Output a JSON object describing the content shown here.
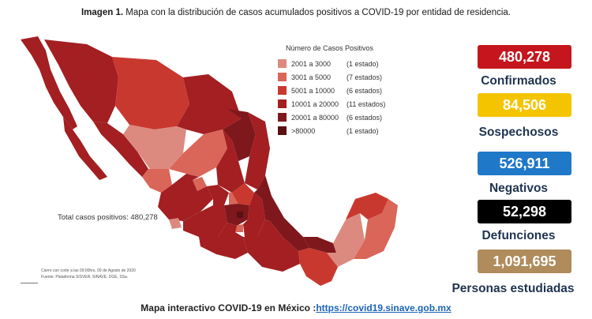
{
  "header": {
    "prefix": "Imagen 1.",
    "title": "Mapa con la distribución de casos acumulados positivos a COVID-19 por entidad de residencia."
  },
  "legend": {
    "title": "Número de Casos Positivos",
    "items": [
      {
        "range": "2001 a  3000",
        "note": "(1 estado)",
        "color": "#dc8a80"
      },
      {
        "range": "3001 a  5000",
        "note": "(7 estados)",
        "color": "#d96658"
      },
      {
        "range": "5001 a 10000",
        "note": "(6 estados)",
        "color": "#c9382f"
      },
      {
        "range": "10001 a 20000",
        "note": "(11 estados)",
        "color": "#a31f22"
      },
      {
        "range": "20001 a 80000",
        "note": "(6 estados)",
        "color": "#7e181c"
      },
      {
        "range": ">80000",
        "note": "(1 estado)",
        "color": "#5a1014"
      }
    ]
  },
  "map": {
    "total_label": "Total casos positivos: 480,278"
  },
  "footnote": {
    "line1": "Cierre con corte a las 09:00hrs, 09 de Agosto de 2020",
    "line2": "Fuente: Plataforma SISVER, SINAVE, DGE, SSa."
  },
  "stats": [
    {
      "value": "480,278",
      "label": "Confirmados",
      "bg": "#c4161c",
      "fg": "#ffffff"
    },
    {
      "value": "84,506",
      "label": "Sospechosos",
      "bg": "#f5c400",
      "fg": "#ffffff"
    },
    {
      "value": "526,911",
      "label": "Negativos",
      "bg": "#1f78c8",
      "fg": "#ffffff"
    },
    {
      "value": "52,298",
      "label": "Defunciones",
      "bg": "#000000",
      "fg": "#ffffff"
    },
    {
      "value": "1,091,695",
      "label": "Personas estudiadas",
      "bg": "#b08b5c",
      "fg": "#ffffff"
    }
  ],
  "footer": {
    "text": "Mapa interactivo COVID-19 en México :",
    "link": "https://covid19.sinave.gob.mx"
  }
}
